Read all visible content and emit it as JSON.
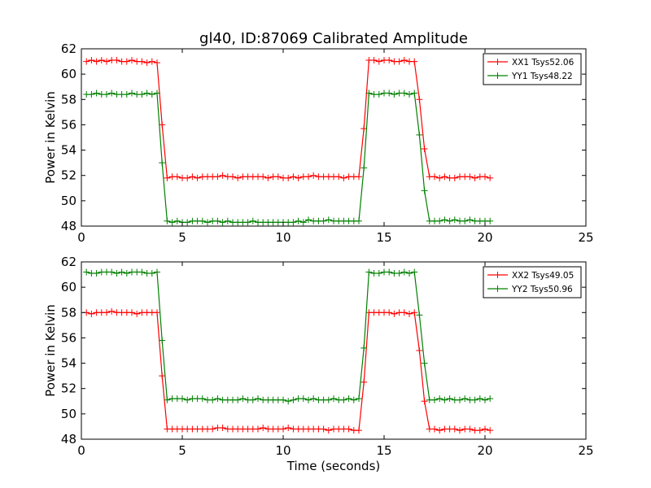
{
  "title": "gl40, ID:87069 Calibrated Amplitude",
  "chart_data": [
    {
      "type": "line",
      "title": "gl40, ID:87069 Calibrated Amplitude",
      "xlabel": "",
      "ylabel": "Power in Kelvin",
      "xlim": [
        0,
        25
      ],
      "ylim": [
        48,
        62
      ],
      "xticks": [
        0,
        5,
        10,
        15,
        20,
        25
      ],
      "yticks": [
        48,
        50,
        52,
        54,
        56,
        58,
        60,
        62
      ],
      "grid": false,
      "legend_position": "top-right",
      "x": [
        0.25,
        0.5,
        0.75,
        1.0,
        1.25,
        1.5,
        1.75,
        2.0,
        2.25,
        2.5,
        2.75,
        3.0,
        3.25,
        3.5,
        3.75,
        4.0,
        4.25,
        4.5,
        4.75,
        5.0,
        5.25,
        5.5,
        5.75,
        6.0,
        6.25,
        6.5,
        6.75,
        7.0,
        7.25,
        7.5,
        7.75,
        8.0,
        8.25,
        8.5,
        8.75,
        9.0,
        9.25,
        9.5,
        9.75,
        10.0,
        10.25,
        10.5,
        10.75,
        11.0,
        11.25,
        11.5,
        11.75,
        12.0,
        12.25,
        12.5,
        12.75,
        13.0,
        13.25,
        13.5,
        13.75,
        14.0,
        14.25,
        14.5,
        14.75,
        15.0,
        15.25,
        15.5,
        15.75,
        16.0,
        16.25,
        16.5,
        16.75,
        17.0,
        17.25,
        17.5,
        17.75,
        18.0,
        18.25,
        18.5,
        18.75,
        19.0,
        19.25,
        19.5,
        19.75,
        20.0,
        20.25
      ],
      "series": [
        {
          "name": "XX1 Tsys52.06",
          "color": "#ff0000",
          "values": [
            61.0,
            61.1,
            61.0,
            61.1,
            61.0,
            61.1,
            61.1,
            61.0,
            61.0,
            61.1,
            61.0,
            61.0,
            60.9,
            61.0,
            60.9,
            56.0,
            51.8,
            51.9,
            51.9,
            51.8,
            51.8,
            51.9,
            51.8,
            51.9,
            51.9,
            51.9,
            51.9,
            52.0,
            51.9,
            51.9,
            51.8,
            51.9,
            51.9,
            51.9,
            51.9,
            51.9,
            51.8,
            51.9,
            51.9,
            51.8,
            51.8,
            51.9,
            51.8,
            51.9,
            51.9,
            52.0,
            51.9,
            51.9,
            51.9,
            51.9,
            51.9,
            51.8,
            51.9,
            51.9,
            51.9,
            55.7,
            61.1,
            61.1,
            61.0,
            61.1,
            61.1,
            61.0,
            61.0,
            61.1,
            61.0,
            61.0,
            58.0,
            54.1,
            51.9,
            51.9,
            51.8,
            51.9,
            51.8,
            51.8,
            51.9,
            51.9,
            51.9,
            51.8,
            51.9,
            51.9,
            51.8
          ]
        },
        {
          "name": "YY1 Tsys48.22",
          "color": "#008000",
          "values": [
            58.4,
            58.4,
            58.5,
            58.4,
            58.4,
            58.5,
            58.4,
            58.4,
            58.4,
            58.5,
            58.4,
            58.4,
            58.5,
            58.4,
            58.5,
            53.0,
            48.4,
            48.3,
            48.4,
            48.3,
            48.3,
            48.4,
            48.4,
            48.4,
            48.3,
            48.4,
            48.4,
            48.3,
            48.4,
            48.3,
            48.3,
            48.3,
            48.3,
            48.4,
            48.3,
            48.3,
            48.3,
            48.3,
            48.3,
            48.3,
            48.3,
            48.3,
            48.4,
            48.3,
            48.5,
            48.4,
            48.4,
            48.4,
            48.5,
            48.4,
            48.4,
            48.4,
            48.4,
            48.4,
            48.4,
            52.6,
            58.5,
            58.4,
            58.4,
            58.5,
            58.5,
            58.4,
            58.5,
            58.5,
            58.4,
            58.5,
            55.2,
            50.8,
            48.4,
            48.4,
            48.4,
            48.5,
            48.4,
            48.5,
            48.4,
            48.4,
            48.5,
            48.4,
            48.4,
            48.4,
            48.4
          ]
        }
      ]
    },
    {
      "type": "line",
      "title": "",
      "xlabel": "Time (seconds)",
      "ylabel": "Power in Kelvin",
      "xlim": [
        0,
        25
      ],
      "ylim": [
        48,
        62
      ],
      "xticks": [
        0,
        5,
        10,
        15,
        20,
        25
      ],
      "yticks": [
        48,
        50,
        52,
        54,
        56,
        58,
        60,
        62
      ],
      "grid": false,
      "legend_position": "top-right",
      "x": [
        0.25,
        0.5,
        0.75,
        1.0,
        1.25,
        1.5,
        1.75,
        2.0,
        2.25,
        2.5,
        2.75,
        3.0,
        3.25,
        3.5,
        3.75,
        4.0,
        4.25,
        4.5,
        4.75,
        5.0,
        5.25,
        5.5,
        5.75,
        6.0,
        6.25,
        6.5,
        6.75,
        7.0,
        7.25,
        7.5,
        7.75,
        8.0,
        8.25,
        8.5,
        8.75,
        9.0,
        9.25,
        9.5,
        9.75,
        10.0,
        10.25,
        10.5,
        10.75,
        11.0,
        11.25,
        11.5,
        11.75,
        12.0,
        12.25,
        12.5,
        12.75,
        13.0,
        13.25,
        13.5,
        13.75,
        14.0,
        14.25,
        14.5,
        14.75,
        15.0,
        15.25,
        15.5,
        15.75,
        16.0,
        16.25,
        16.5,
        16.75,
        17.0,
        17.25,
        17.5,
        17.75,
        18.0,
        18.25,
        18.5,
        18.75,
        19.0,
        19.25,
        19.5,
        19.75,
        20.0,
        20.25
      ],
      "series": [
        {
          "name": "XX2 Tsys49.05",
          "color": "#ff0000",
          "values": [
            58.0,
            57.9,
            58.0,
            58.0,
            58.0,
            58.1,
            58.0,
            58.0,
            58.0,
            58.0,
            57.9,
            58.0,
            58.0,
            58.0,
            58.0,
            53.0,
            48.8,
            48.8,
            48.8,
            48.8,
            48.8,
            48.8,
            48.8,
            48.8,
            48.8,
            48.8,
            48.9,
            48.9,
            48.8,
            48.8,
            48.8,
            48.8,
            48.8,
            48.8,
            48.8,
            48.9,
            48.8,
            48.8,
            48.8,
            48.8,
            48.9,
            48.8,
            48.8,
            48.8,
            48.8,
            48.8,
            48.8,
            48.8,
            48.7,
            48.8,
            48.8,
            48.8,
            48.8,
            48.7,
            48.7,
            52.5,
            58.0,
            58.0,
            58.0,
            58.0,
            58.0,
            57.9,
            58.0,
            58.0,
            57.9,
            58.0,
            55.0,
            51.0,
            48.8,
            48.8,
            48.7,
            48.8,
            48.8,
            48.8,
            48.7,
            48.8,
            48.8,
            48.7,
            48.7,
            48.8,
            48.7
          ]
        },
        {
          "name": "YY2 Tsys50.96",
          "color": "#008000",
          "values": [
            61.2,
            61.1,
            61.1,
            61.2,
            61.2,
            61.2,
            61.1,
            61.2,
            61.1,
            61.2,
            61.2,
            61.2,
            61.1,
            61.1,
            61.2,
            55.8,
            51.1,
            51.2,
            51.2,
            51.2,
            51.1,
            51.2,
            51.2,
            51.2,
            51.1,
            51.1,
            51.2,
            51.1,
            51.1,
            51.1,
            51.1,
            51.2,
            51.1,
            51.1,
            51.2,
            51.1,
            51.1,
            51.1,
            51.1,
            51.1,
            51.0,
            51.1,
            51.2,
            51.2,
            51.1,
            51.2,
            51.1,
            51.1,
            51.1,
            51.2,
            51.1,
            51.1,
            51.2,
            51.1,
            51.2,
            55.2,
            61.2,
            61.1,
            61.1,
            61.2,
            61.2,
            61.1,
            61.1,
            61.2,
            61.1,
            61.2,
            57.8,
            54.0,
            51.1,
            51.1,
            51.2,
            51.1,
            51.2,
            51.1,
            51.1,
            51.2,
            51.1,
            51.1,
            51.2,
            51.1,
            51.2
          ]
        }
      ]
    }
  ]
}
